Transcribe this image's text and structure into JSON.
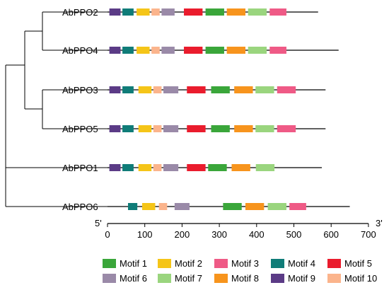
{
  "axis": {
    "ticks": [
      0,
      100,
      200,
      300,
      400,
      500,
      600,
      700
    ],
    "end5": "5'",
    "end3": "3'",
    "range": [
      0,
      700
    ]
  },
  "proteins": [
    {
      "name": "AbPPO2",
      "length": 565,
      "motifs": [
        {
          "id": 9,
          "start": 5,
          "end": 35
        },
        {
          "id": 4,
          "start": 40,
          "end": 70
        },
        {
          "id": 2,
          "start": 78,
          "end": 113
        },
        {
          "id": 10,
          "start": 118,
          "end": 140
        },
        {
          "id": 6,
          "start": 145,
          "end": 180
        },
        {
          "id": 5,
          "start": 205,
          "end": 255
        },
        {
          "id": 1,
          "start": 263,
          "end": 313
        },
        {
          "id": 8,
          "start": 320,
          "end": 370
        },
        {
          "id": 7,
          "start": 377,
          "end": 427
        },
        {
          "id": 3,
          "start": 435,
          "end": 480
        }
      ]
    },
    {
      "name": "AbPPO4",
      "length": 620,
      "motifs": [
        {
          "id": 9,
          "start": 5,
          "end": 35
        },
        {
          "id": 4,
          "start": 40,
          "end": 70
        },
        {
          "id": 2,
          "start": 78,
          "end": 113
        },
        {
          "id": 10,
          "start": 118,
          "end": 140
        },
        {
          "id": 6,
          "start": 145,
          "end": 180
        },
        {
          "id": 5,
          "start": 205,
          "end": 255
        },
        {
          "id": 1,
          "start": 263,
          "end": 313
        },
        {
          "id": 8,
          "start": 320,
          "end": 370
        },
        {
          "id": 7,
          "start": 377,
          "end": 427
        },
        {
          "id": 3,
          "start": 435,
          "end": 480
        }
      ]
    },
    {
      "name": "AbPPO3",
      "length": 585,
      "motifs": [
        {
          "id": 9,
          "start": 5,
          "end": 35
        },
        {
          "id": 4,
          "start": 40,
          "end": 70
        },
        {
          "id": 2,
          "start": 83,
          "end": 118
        },
        {
          "id": 10,
          "start": 123,
          "end": 145
        },
        {
          "id": 6,
          "start": 150,
          "end": 190
        },
        {
          "id": 5,
          "start": 213,
          "end": 263
        },
        {
          "id": 1,
          "start": 278,
          "end": 328
        },
        {
          "id": 8,
          "start": 340,
          "end": 390
        },
        {
          "id": 7,
          "start": 397,
          "end": 447
        },
        {
          "id": 3,
          "start": 455,
          "end": 505
        }
      ]
    },
    {
      "name": "AbPPO5",
      "length": 585,
      "motifs": [
        {
          "id": 9,
          "start": 5,
          "end": 35
        },
        {
          "id": 4,
          "start": 40,
          "end": 70
        },
        {
          "id": 2,
          "start": 83,
          "end": 118
        },
        {
          "id": 10,
          "start": 123,
          "end": 145
        },
        {
          "id": 6,
          "start": 150,
          "end": 190
        },
        {
          "id": 5,
          "start": 213,
          "end": 263
        },
        {
          "id": 1,
          "start": 278,
          "end": 328
        },
        {
          "id": 8,
          "start": 340,
          "end": 390
        },
        {
          "id": 7,
          "start": 397,
          "end": 447
        },
        {
          "id": 3,
          "start": 455,
          "end": 505
        }
      ]
    },
    {
      "name": "AbPPO1",
      "length": 575,
      "motifs": [
        {
          "id": 9,
          "start": 5,
          "end": 35
        },
        {
          "id": 4,
          "start": 40,
          "end": 70
        },
        {
          "id": 2,
          "start": 83,
          "end": 118
        },
        {
          "id": 10,
          "start": 123,
          "end": 145
        },
        {
          "id": 6,
          "start": 150,
          "end": 190
        },
        {
          "id": 5,
          "start": 213,
          "end": 263
        },
        {
          "id": 1,
          "start": 270,
          "end": 320
        },
        {
          "id": 8,
          "start": 333,
          "end": 383
        },
        {
          "id": 7,
          "start": 398,
          "end": 448
        }
      ]
    },
    {
      "name": "AbPPO6",
      "length": 650,
      "motifs": [
        {
          "id": 4,
          "start": 55,
          "end": 80
        },
        {
          "id": 2,
          "start": 93,
          "end": 128
        },
        {
          "id": 10,
          "start": 138,
          "end": 160
        },
        {
          "id": 6,
          "start": 180,
          "end": 220
        },
        {
          "id": 1,
          "start": 310,
          "end": 360
        },
        {
          "id": 8,
          "start": 370,
          "end": 420
        },
        {
          "id": 7,
          "start": 430,
          "end": 480
        },
        {
          "id": 3,
          "start": 488,
          "end": 533
        }
      ]
    }
  ],
  "legend": [
    {
      "id": 1,
      "label": "Motif 1",
      "color": "#3aa63a"
    },
    {
      "id": 2,
      "label": "Motif 2",
      "color": "#f5c518"
    },
    {
      "id": 3,
      "label": "Motif 3",
      "color": "#ef5a86"
    },
    {
      "id": 4,
      "label": "Motif 4",
      "color": "#0f7c78"
    },
    {
      "id": 5,
      "label": "Motif 5",
      "color": "#ea1c2d"
    },
    {
      "id": 6,
      "label": "Motif 6",
      "color": "#9a8aa8"
    },
    {
      "id": 7,
      "label": "Motif 7",
      "color": "#9ad57e"
    },
    {
      "id": 8,
      "label": "Motif 8",
      "color": "#f7941d"
    },
    {
      "id": 9,
      "label": "Motif 9",
      "color": "#5b3b86"
    },
    {
      "id": 10,
      "label": "Motif 10",
      "color": "#fbb48c"
    }
  ]
}
